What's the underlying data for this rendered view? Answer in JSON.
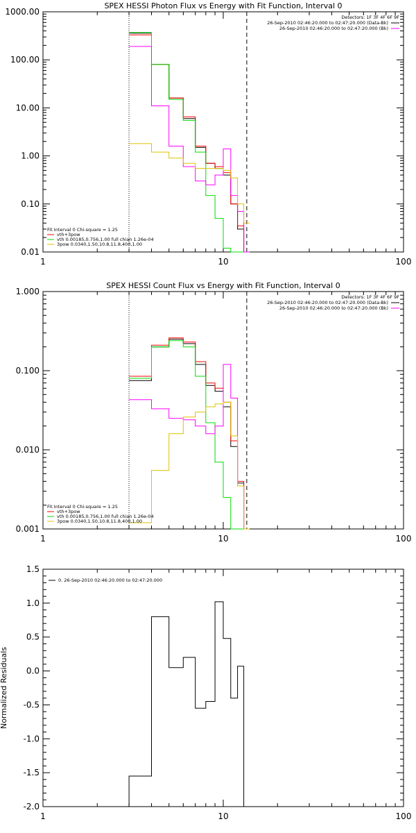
{
  "chart_data": [
    {
      "type": "line",
      "title": "SPEX HESSI Photon Flux vs Energy with Fit Function, Interval 0",
      "xlabel": "",
      "ylabel": "",
      "xscale": "log",
      "yscale": "log",
      "xlim": [
        1,
        100
      ],
      "ylim": [
        0.01,
        1000
      ],
      "x_ticks": [
        "1",
        "10",
        "100"
      ],
      "y_ticks": [
        "0.01",
        "0.10",
        "1.00",
        "10.00",
        "100.00",
        "1000.00"
      ],
      "detector_label": "Detectors: 1F 3F 4F 6F 9F",
      "info_lines": [
        {
          "text": "26-Sep-2010 02:46:20.000 to 02:47:20.000 (Data-Bk)",
          "color": "#000000"
        },
        {
          "text": "26-Sep-2010 02:46:20.000 to 02:47:20.000 (Bk)",
          "color": "#ff00ff"
        }
      ],
      "fit_labels": [
        {
          "text": "Fit Interval 0   Chi-square = 1.25",
          "color": "#000000"
        },
        {
          "text": "vth+3pow",
          "color": "#ff0000"
        },
        {
          "text": "vth 0.00185,0.756,1.00  full chian 1.26e-04",
          "color": "#00dd00"
        },
        {
          "text": "3pow 0.0340,1.50,10.8,11.8,400,1.00",
          "color": "#e0c000"
        }
      ],
      "energy_edges": [
        3,
        4,
        5,
        6,
        7,
        8,
        9,
        10,
        11,
        12,
        13,
        14
      ],
      "vlines": [
        {
          "x": 3,
          "style": "dotted"
        },
        {
          "x": 13.5,
          "style": "dashed"
        }
      ],
      "series": [
        {
          "color": "#000000",
          "values": [
            360,
            80,
            16,
            6,
            1.5,
            0.7,
            0.55,
            0.4,
            0.1,
            0.03,
            0.01
          ]
        },
        {
          "color": "#ff0000",
          "values": [
            330,
            80,
            16,
            6.5,
            1.6,
            0.7,
            0.6,
            0.45,
            0.1,
            0.035,
            0.01
          ]
        },
        {
          "color": "#00dd00",
          "values": [
            370,
            80,
            15,
            5.5,
            1.2,
            0.15,
            0.05,
            0.012,
            0.01,
            0.01,
            0.01
          ]
        },
        {
          "color": "#ff00ff",
          "values": [
            190,
            11,
            1.6,
            0.6,
            0.3,
            0.25,
            0.4,
            1.4,
            0.15,
            0.07,
            0.01
          ]
        },
        {
          "color": "#e0c000",
          "values": [
            1.8,
            1.2,
            0.9,
            0.7,
            0.55,
            0.55,
            0.55,
            0.5,
            0.35,
            0.1,
            0.04
          ]
        }
      ]
    },
    {
      "type": "line",
      "title": "SPEX HESSI Count Flux vs Energy with Fit Function, Interval 0",
      "xlabel": "",
      "ylabel": "",
      "xscale": "log",
      "yscale": "log",
      "xlim": [
        1,
        100
      ],
      "ylim": [
        0.001,
        1
      ],
      "x_ticks": [
        "1",
        "10",
        "100"
      ],
      "y_ticks": [
        "0.001",
        "0.010",
        "0.100",
        "1.000"
      ],
      "detector_label": "Detectors: 1F 3F 4F 6F 9F",
      "info_lines": [
        {
          "text": "26-Sep-2010 02:46:20.000 to 02:47:20.000 (Data-Bk)",
          "color": "#000000"
        },
        {
          "text": "26-Sep-2010 02:46:20.000 to 02:47:20.000 (Bk)",
          "color": "#ff00ff"
        }
      ],
      "fit_labels": [
        {
          "text": "Fit Interval 0   Chi-square = 1.25",
          "color": "#000000"
        },
        {
          "text": "vth+3pow",
          "color": "#ff0000"
        },
        {
          "text": "vth 0.00185,0.756,1.00  full chian 1.26e-04",
          "color": "#00dd00"
        },
        {
          "text": "3pow 0.0340,1.50,10.8,11.8,400,1.00",
          "color": "#e0c000"
        }
      ],
      "energy_edges": [
        3,
        4,
        5,
        6,
        7,
        8,
        9,
        10,
        11,
        12,
        13,
        14
      ],
      "vlines": [
        {
          "x": 3,
          "style": "dotted"
        },
        {
          "x": 13.5,
          "style": "dashed"
        }
      ],
      "series": [
        {
          "color": "#000000",
          "values": [
            0.075,
            0.2,
            0.25,
            0.22,
            0.12,
            0.065,
            0.055,
            0.035,
            0.011,
            0.0038,
            0.001
          ]
        },
        {
          "color": "#ff0000",
          "values": [
            0.085,
            0.21,
            0.26,
            0.23,
            0.13,
            0.07,
            0.06,
            0.04,
            0.013,
            0.004,
            0.001
          ]
        },
        {
          "color": "#00dd00",
          "values": [
            0.08,
            0.2,
            0.24,
            0.2,
            0.085,
            0.022,
            0.007,
            0.0025,
            0.001,
            0.001,
            0.001
          ]
        },
        {
          "color": "#ff00ff",
          "values": [
            0.043,
            0.033,
            0.025,
            0.024,
            0.02,
            0.016,
            0.02,
            0.12,
            0.045,
            0.0035,
            0.001
          ]
        },
        {
          "color": "#e0c000",
          "values": [
            0.0012,
            0.0055,
            0.016,
            0.026,
            0.03,
            0.035,
            0.038,
            0.04,
            0.015,
            0.0035,
            0.001
          ]
        }
      ]
    },
    {
      "type": "line",
      "title": "",
      "xlabel": "",
      "ylabel": "Normalized Residuals",
      "xscale": "log",
      "yscale": "linear",
      "xlim": [
        1,
        100
      ],
      "ylim": [
        -2.0,
        1.5
      ],
      "x_ticks": [
        "1",
        "10",
        "100"
      ],
      "y_ticks": [
        "-2.0",
        "-1.5",
        "-1.0",
        "-0.5",
        "0.0",
        "0.5",
        "1.0",
        "1.5"
      ],
      "legend": "0. 26-Sep-2010 02:46:20.000 to 02:47:20.000",
      "energy_edges": [
        3,
        4,
        5,
        6,
        7,
        8,
        9,
        10,
        11,
        12,
        13,
        14
      ],
      "series": [
        {
          "color": "#000000",
          "values": [
            -1.55,
            0.8,
            0.05,
            0.2,
            -0.55,
            -0.45,
            1.02,
            0.48,
            -0.4,
            0.07
          ]
        }
      ],
      "close_to_bottom": true
    }
  ]
}
